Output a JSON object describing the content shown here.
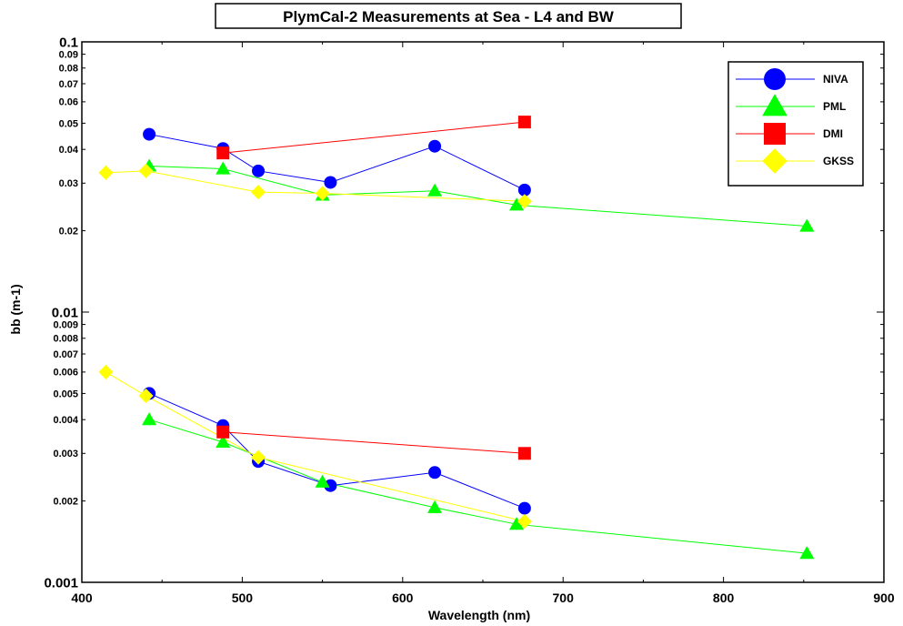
{
  "chart_data": {
    "type": "line",
    "title": "PlymCal-2   Measurements at Sea - L4 and BW",
    "xlabel": "Wavelength (nm)",
    "ylabel": "bb (m-1)",
    "xlim": [
      400,
      900
    ],
    "ylim": [
      0.001,
      0.1
    ],
    "yscale": "log",
    "x_ticks": [
      400,
      500,
      600,
      700,
      800,
      900
    ],
    "x_tick_labels": [
      "400",
      "500",
      "600",
      "700",
      "800",
      "900"
    ],
    "y_ticks": [
      0.001,
      0.002,
      0.003,
      0.004,
      0.005,
      0.006,
      0.007,
      0.008,
      0.009,
      0.01,
      0.02,
      0.03,
      0.04,
      0.05,
      0.06,
      0.07,
      0.08,
      0.09,
      0.1
    ],
    "y_tick_labels": [
      "0.001",
      "0.002",
      "0.003",
      "0.004",
      "0.005",
      "0.006",
      "0.007",
      "0.008",
      "0.009",
      "0.01",
      "0.02",
      "0.03",
      "0.04",
      "0.05",
      "0.06",
      "0.07",
      "0.08",
      "0.09",
      "0.1"
    ],
    "grid": false,
    "legend_position": "top-right",
    "series": [
      {
        "name": "NIVA",
        "color": "#0000ff",
        "marker": "circle",
        "segments": [
          {
            "x": [
              442,
              488,
              510,
              555,
              620,
              676
            ],
            "y": [
              0.0455,
              0.0403,
              0.0333,
              0.0302,
              0.0411,
              0.0283
            ]
          },
          {
            "x": [
              442,
              488,
              510,
              555,
              620,
              676
            ],
            "y": [
              0.005,
              0.0038,
              0.0028,
              0.00228,
              0.00255,
              0.00188
            ]
          }
        ]
      },
      {
        "name": "PML",
        "color": "#00ff00",
        "marker": "triangle",
        "segments": [
          {
            "x": [
              442,
              488,
              550,
              620,
              671,
              852
            ],
            "y": [
              0.0347,
              0.0339,
              0.0271,
              0.0281,
              0.0249,
              0.0208
            ]
          },
          {
            "x": [
              442,
              488,
              550,
              620,
              671,
              852
            ],
            "y": [
              0.004,
              0.0033,
              0.00235,
              0.00189,
              0.00164,
              0.00128
            ]
          }
        ]
      },
      {
        "name": "DMI",
        "color": "#ff0000",
        "marker": "square",
        "segments": [
          {
            "x": [
              488,
              676
            ],
            "y": [
              0.0388,
              0.0505
            ]
          },
          {
            "x": [
              488,
              676
            ],
            "y": [
              0.0036,
              0.003
            ]
          }
        ]
      },
      {
        "name": "GKSS",
        "color": "#ffff00",
        "marker": "diamond",
        "segments": [
          {
            "x": [
              415,
              440,
              510,
              550,
              676
            ],
            "y": [
              0.0328,
              0.0333,
              0.0278,
              0.0275,
              0.0257
            ]
          },
          {
            "x": [
              415,
              440,
              510,
              676
            ],
            "y": [
              0.006,
              0.0049,
              0.0029,
              0.00168
            ]
          }
        ]
      }
    ]
  }
}
